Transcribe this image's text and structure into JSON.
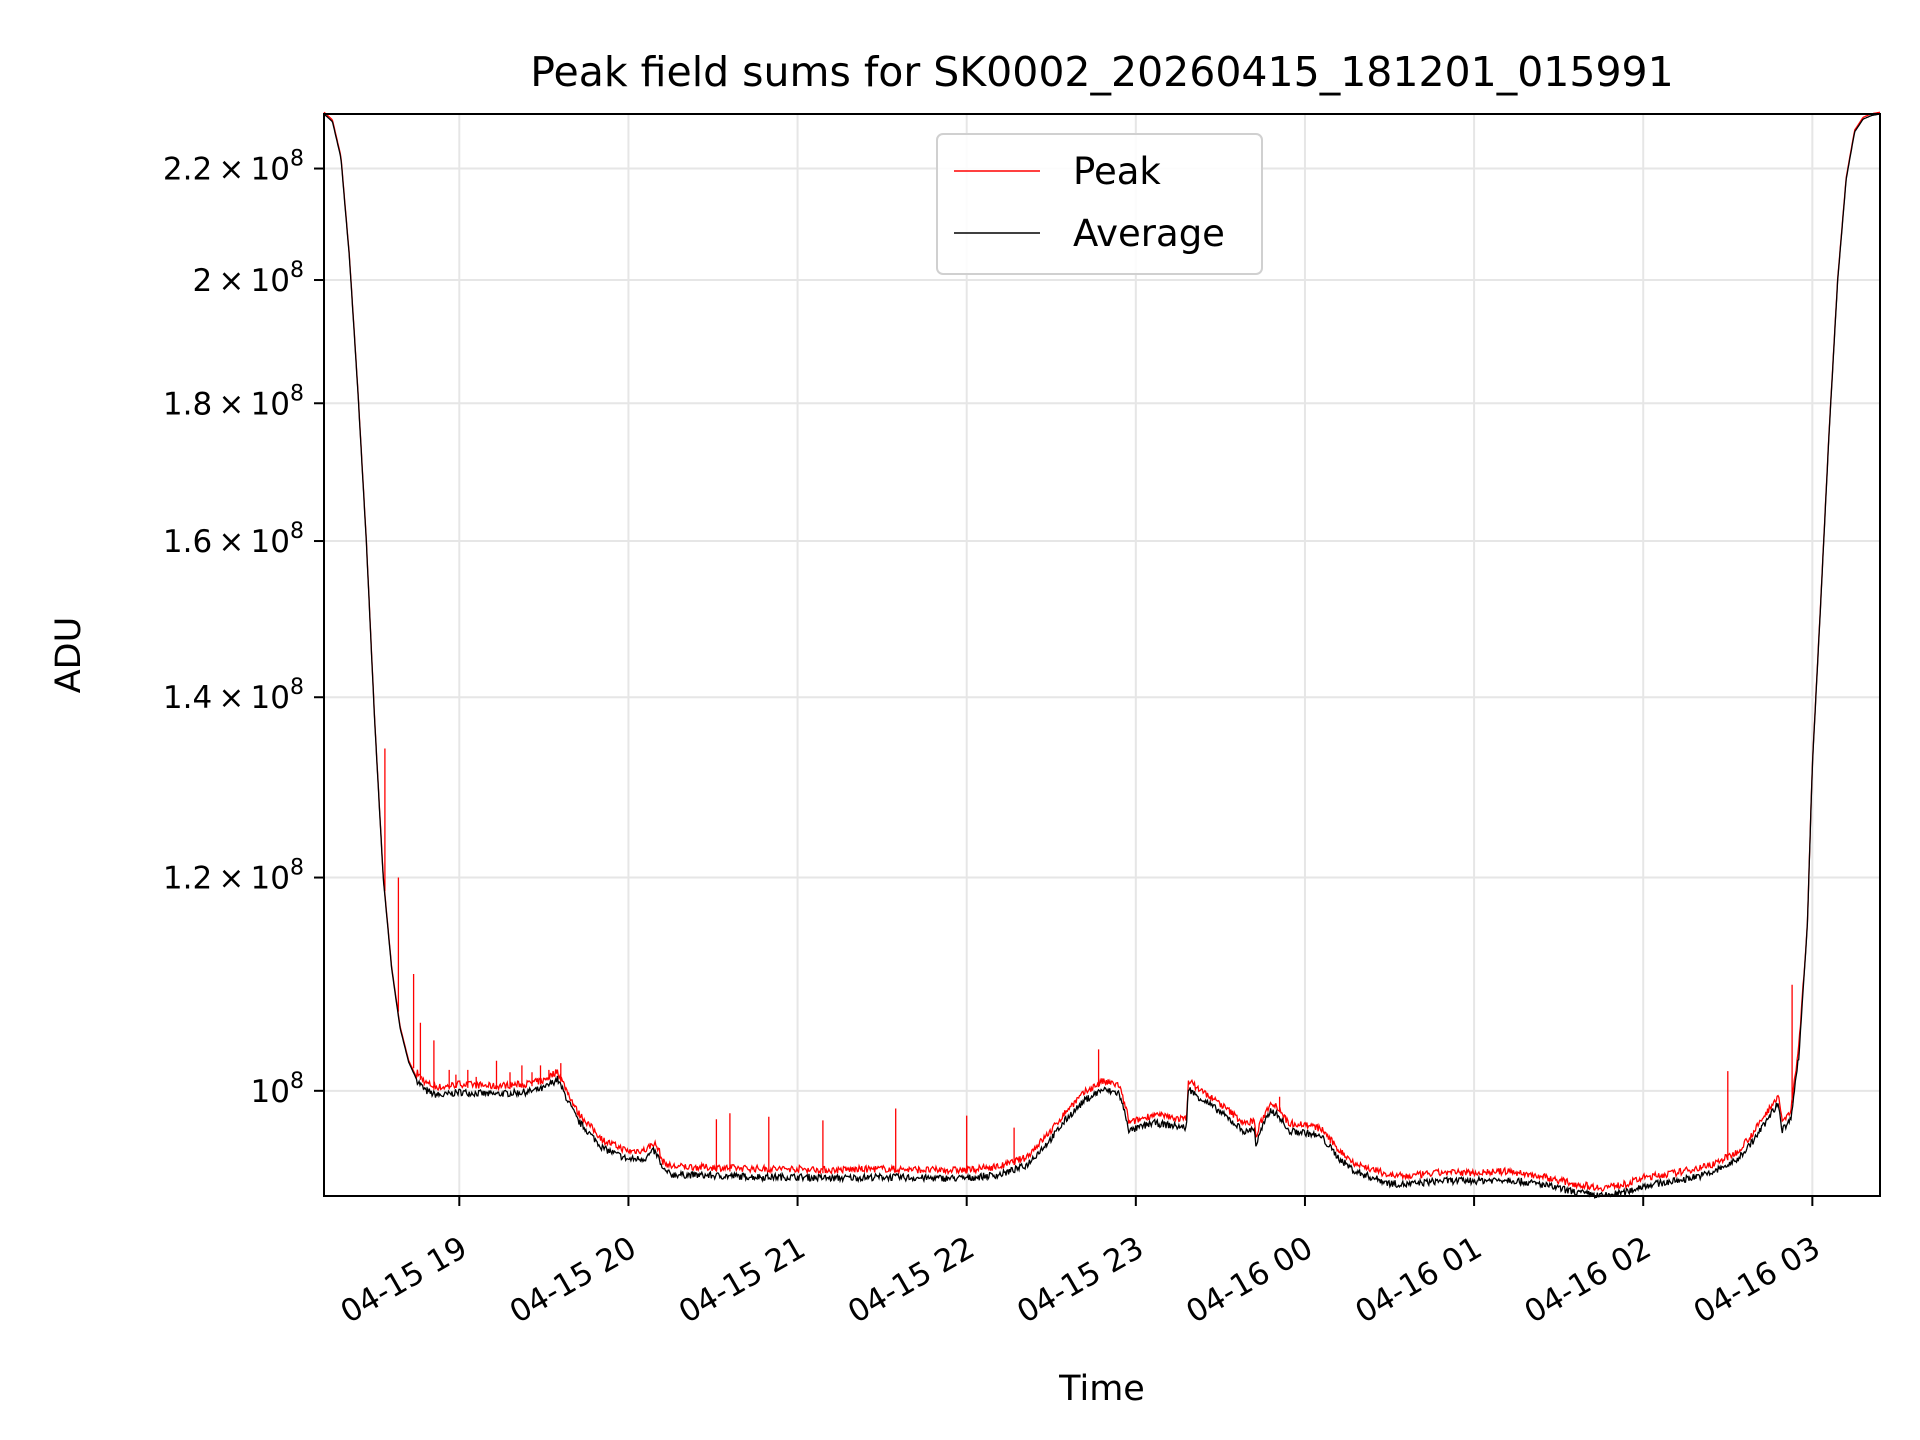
{
  "chart_data": {
    "type": "line",
    "title": "Peak field sums for SK0002_20260415_181201_015991",
    "xlabel": "Time",
    "ylabel": "ADU",
    "yscale": "log",
    "xlim_hours": [
      18.2,
      27.4
    ],
    "ylim": [
      91400000,
      230500000
    ],
    "grid": true,
    "legend_position": "upper center",
    "x_unit": "hours since 2026-04-15 00:00",
    "x_ticks": [
      {
        "value": 19,
        "label": "04-15 19"
      },
      {
        "value": 20,
        "label": "04-15 20"
      },
      {
        "value": 21,
        "label": "04-15 21"
      },
      {
        "value": 22,
        "label": "04-15 22"
      },
      {
        "value": 23,
        "label": "04-15 23"
      },
      {
        "value": 24,
        "label": "04-16 00"
      },
      {
        "value": 25,
        "label": "04-16 01"
      },
      {
        "value": 26,
        "label": "04-16 02"
      },
      {
        "value": 27,
        "label": "04-16 03"
      }
    ],
    "y_ticks": [
      {
        "value": 100000000,
        "mantissa": "",
        "exponent": "8"
      },
      {
        "value": 120000000,
        "mantissa": "1.2",
        "exponent": "8"
      },
      {
        "value": 140000000,
        "mantissa": "1.4",
        "exponent": "8"
      },
      {
        "value": 160000000,
        "mantissa": "1.6",
        "exponent": "8"
      },
      {
        "value": 180000000,
        "mantissa": "1.8",
        "exponent": "8"
      },
      {
        "value": 200000000,
        "mantissa": "2",
        "exponent": "8"
      },
      {
        "value": 220000000,
        "mantissa": "2.2",
        "exponent": "8"
      }
    ],
    "series": [
      {
        "name": "Peak",
        "color": "#ff0000"
      },
      {
        "name": "Average",
        "color": "#000000"
      }
    ],
    "average_x": [
      18.2,
      18.25,
      18.3,
      18.35,
      18.4,
      18.45,
      18.5,
      18.55,
      18.6,
      18.65,
      18.7,
      18.75,
      18.8,
      18.85,
      18.9,
      19.0,
      19.2,
      19.4,
      19.5,
      19.58,
      19.62,
      19.7,
      19.85,
      20.0,
      20.1,
      20.15,
      20.18,
      20.2,
      20.25,
      20.5,
      20.8,
      21.0,
      21.2,
      21.5,
      21.8,
      22.0,
      22.2,
      22.35,
      22.5,
      22.6,
      22.7,
      22.8,
      22.9,
      22.95,
      22.96,
      23.1,
      23.3,
      23.31,
      23.34,
      23.5,
      23.65,
      23.7,
      23.71,
      23.74,
      23.8,
      23.85,
      23.9,
      24.0,
      24.1,
      24.2,
      24.3,
      24.5,
      24.6,
      24.8,
      25.0,
      25.2,
      25.4,
      25.6,
      25.75,
      25.9,
      26.0,
      26.2,
      26.4,
      26.55,
      26.65,
      26.75,
      26.8,
      26.82,
      26.87,
      26.92,
      26.97,
      27.0,
      27.05,
      27.1,
      27.15,
      27.2,
      27.25,
      27.3,
      27.35,
      27.4
    ],
    "average_y": [
      230500000,
      229000000,
      222000000,
      204000000,
      182000000,
      160000000,
      137000000,
      120000000,
      111000000,
      105500000,
      102500000,
      100900000,
      100000000,
      99700000,
      99600000,
      99900000,
      99700000,
      99900000,
      100200000,
      101000000,
      99800000,
      97500000,
      95200000,
      94300000,
      94400000,
      95000000,
      94400000,
      93500000,
      93100000,
      93000000,
      92900000,
      92900000,
      92800000,
      92900000,
      92800000,
      92800000,
      93100000,
      93800000,
      96000000,
      97800000,
      99200000,
      100100000,
      99800000,
      97400000,
      96600000,
      97300000,
      96900000,
      100300000,
      99800000,
      98200000,
      96500000,
      96900000,
      95400000,
      96700000,
      98400000,
      97800000,
      96600000,
      96500000,
      96100000,
      94400000,
      93300000,
      92400000,
      92300000,
      92600000,
      92600000,
      92700000,
      92300000,
      91700000,
      91400000,
      91700000,
      92200000,
      92600000,
      93200000,
      94200000,
      95800000,
      97900000,
      99000000,
      96700000,
      97500000,
      103000000,
      115000000,
      132000000,
      152000000,
      176000000,
      200000000,
      218000000,
      227000000,
      229500000,
      230200000,
      230500000
    ],
    "peak_spikes": [
      {
        "x": 18.56,
        "y": 134000000
      },
      {
        "x": 18.64,
        "y": 120000000
      },
      {
        "x": 18.73,
        "y": 110500000
      },
      {
        "x": 18.77,
        "y": 106000000
      },
      {
        "x": 18.85,
        "y": 104400000
      },
      {
        "x": 18.94,
        "y": 101800000
      },
      {
        "x": 18.98,
        "y": 101400000
      },
      {
        "x": 19.05,
        "y": 101800000
      },
      {
        "x": 19.1,
        "y": 101200000
      },
      {
        "x": 19.22,
        "y": 102600000
      },
      {
        "x": 19.3,
        "y": 101600000
      },
      {
        "x": 19.37,
        "y": 102200000
      },
      {
        "x": 19.43,
        "y": 101600000
      },
      {
        "x": 19.48,
        "y": 102200000
      },
      {
        "x": 19.53,
        "y": 101800000
      },
      {
        "x": 19.6,
        "y": 102400000
      },
      {
        "x": 20.52,
        "y": 97600000
      },
      {
        "x": 20.6,
        "y": 98100000
      },
      {
        "x": 20.83,
        "y": 97800000
      },
      {
        "x": 21.15,
        "y": 97500000
      },
      {
        "x": 21.58,
        "y": 98500000
      },
      {
        "x": 22.0,
        "y": 97900000
      },
      {
        "x": 22.28,
        "y": 96900000
      },
      {
        "x": 22.78,
        "y": 103600000
      },
      {
        "x": 23.85,
        "y": 99500000
      },
      {
        "x": 24.15,
        "y": 96000000
      },
      {
        "x": 26.5,
        "y": 101700000
      },
      {
        "x": 26.88,
        "y": 109500000
      }
    ]
  }
}
